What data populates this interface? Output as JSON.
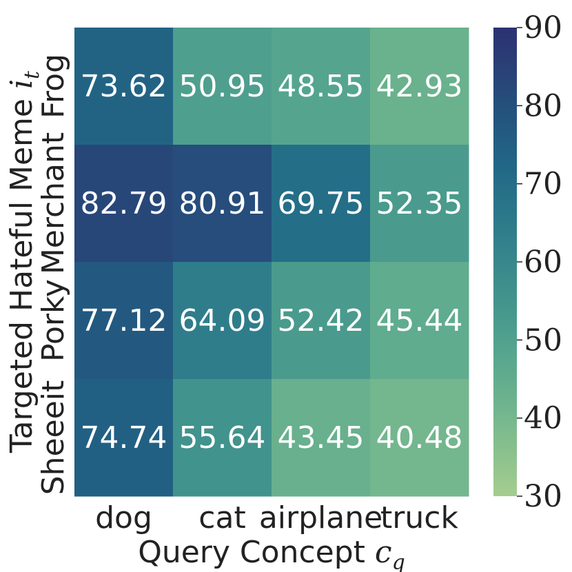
{
  "chart_data": {
    "type": "heatmap",
    "xlabel": "Query Concept",
    "xlabel_math": "c",
    "xlabel_math_sub": "q",
    "ylabel": "Targeted Hateful Meme",
    "ylabel_math": "i",
    "ylabel_math_sub": "t",
    "x_categories": [
      "dog",
      "cat",
      "airplane",
      "truck"
    ],
    "y_categories": [
      "Frog",
      "Merchant",
      "Porky",
      "Sheeeit"
    ],
    "values": [
      [
        73.62,
        50.95,
        48.55,
        42.93
      ],
      [
        82.79,
        80.91,
        69.75,
        52.35
      ],
      [
        77.12,
        64.09,
        52.42,
        45.44
      ],
      [
        74.74,
        55.64,
        43.45,
        40.48
      ]
    ],
    "value_labels": [
      [
        "73.62",
        "50.95",
        "48.55",
        "42.93"
      ],
      [
        "82.79",
        "80.91",
        "69.75",
        "52.35"
      ],
      [
        "77.12",
        "64.09",
        "52.42",
        "45.44"
      ],
      [
        "74.74",
        "55.64",
        "43.45",
        "40.48"
      ]
    ],
    "colorbar": {
      "min": 30,
      "max": 90,
      "ticks": [
        "30",
        "40",
        "50",
        "60",
        "70",
        "80",
        "90"
      ],
      "colormap": "crest",
      "low_color": "#a5cd90",
      "high_color": "#2c3172"
    }
  }
}
